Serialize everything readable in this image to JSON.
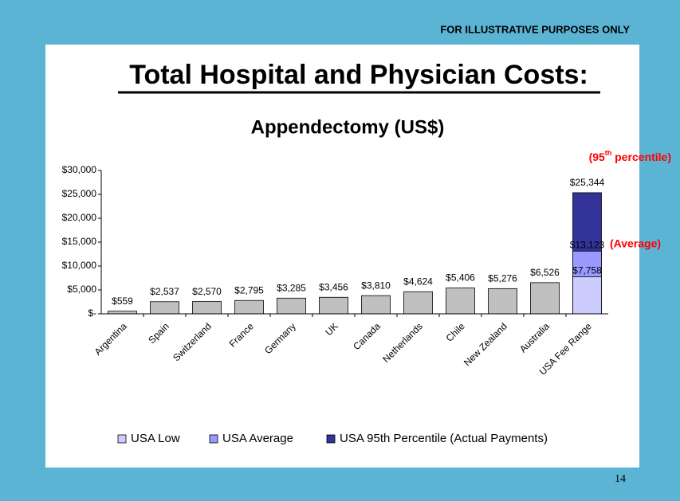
{
  "header": "FOR ILLUSTRATIVE PURPOSES ONLY",
  "slide_title": "Total Hospital and Physician Costs:",
  "page_number": "14",
  "chart_data": {
    "type": "bar",
    "title": "Appendectomy (US$)",
    "categories": [
      "Argentina",
      "Spain",
      "Switzerland",
      "France",
      "Germany",
      "UK",
      "Canada",
      "Netherlands",
      "Chile",
      "New Zealand",
      "Australia",
      "USA Fee Range"
    ],
    "values": [
      559,
      2537,
      2570,
      2795,
      3285,
      3456,
      3810,
      4624,
      5406,
      5276,
      6526,
      null
    ],
    "value_labels": [
      "$559",
      "$2,537",
      "$2,570",
      "$2,795",
      "$3,285",
      "$3,456",
      "$3,810",
      "$4,624",
      "$5,406",
      "$5,276",
      "$6,526",
      null
    ],
    "color": "#c0c0c0",
    "series": [
      {
        "name": "USA Low",
        "color": "#ccccff",
        "values": [
          null,
          null,
          null,
          null,
          null,
          null,
          null,
          null,
          null,
          null,
          null,
          7758
        ],
        "value_labels": [
          null,
          null,
          null,
          null,
          null,
          null,
          null,
          null,
          null,
          null,
          null,
          "$7,758"
        ]
      },
      {
        "name": "USA Average",
        "color": "#9999ff",
        "values": [
          null,
          null,
          null,
          null,
          null,
          null,
          null,
          null,
          null,
          null,
          null,
          13123
        ],
        "value_labels": [
          null,
          null,
          null,
          null,
          null,
          null,
          null,
          null,
          null,
          null,
          null,
          "$13,123"
        ]
      },
      {
        "name": "USA 95th Percentile (Actual Payments)",
        "color": "#333399",
        "values": [
          null,
          null,
          null,
          null,
          null,
          null,
          null,
          null,
          null,
          null,
          null,
          25344
        ],
        "value_labels": [
          null,
          null,
          null,
          null,
          null,
          null,
          null,
          null,
          null,
          null,
          null,
          "$25,344"
        ]
      }
    ],
    "ylim": [
      0,
      30000
    ],
    "yticks": [
      {
        "value": 0,
        "label": "$-"
      },
      {
        "value": 5000,
        "label": "$5,000"
      },
      {
        "value": 10000,
        "label": "$10,000"
      },
      {
        "value": 15000,
        "label": "$15,000"
      },
      {
        "value": 20000,
        "label": "$20,000"
      },
      {
        "value": 25000,
        "label": "$25,000"
      },
      {
        "value": 30000,
        "label": "$30,000"
      }
    ],
    "legend": "bottom",
    "annotations": [
      {
        "text": "(95",
        "sup": "th",
        "rest": " percentile)"
      },
      {
        "text": "(Average)"
      }
    ]
  }
}
